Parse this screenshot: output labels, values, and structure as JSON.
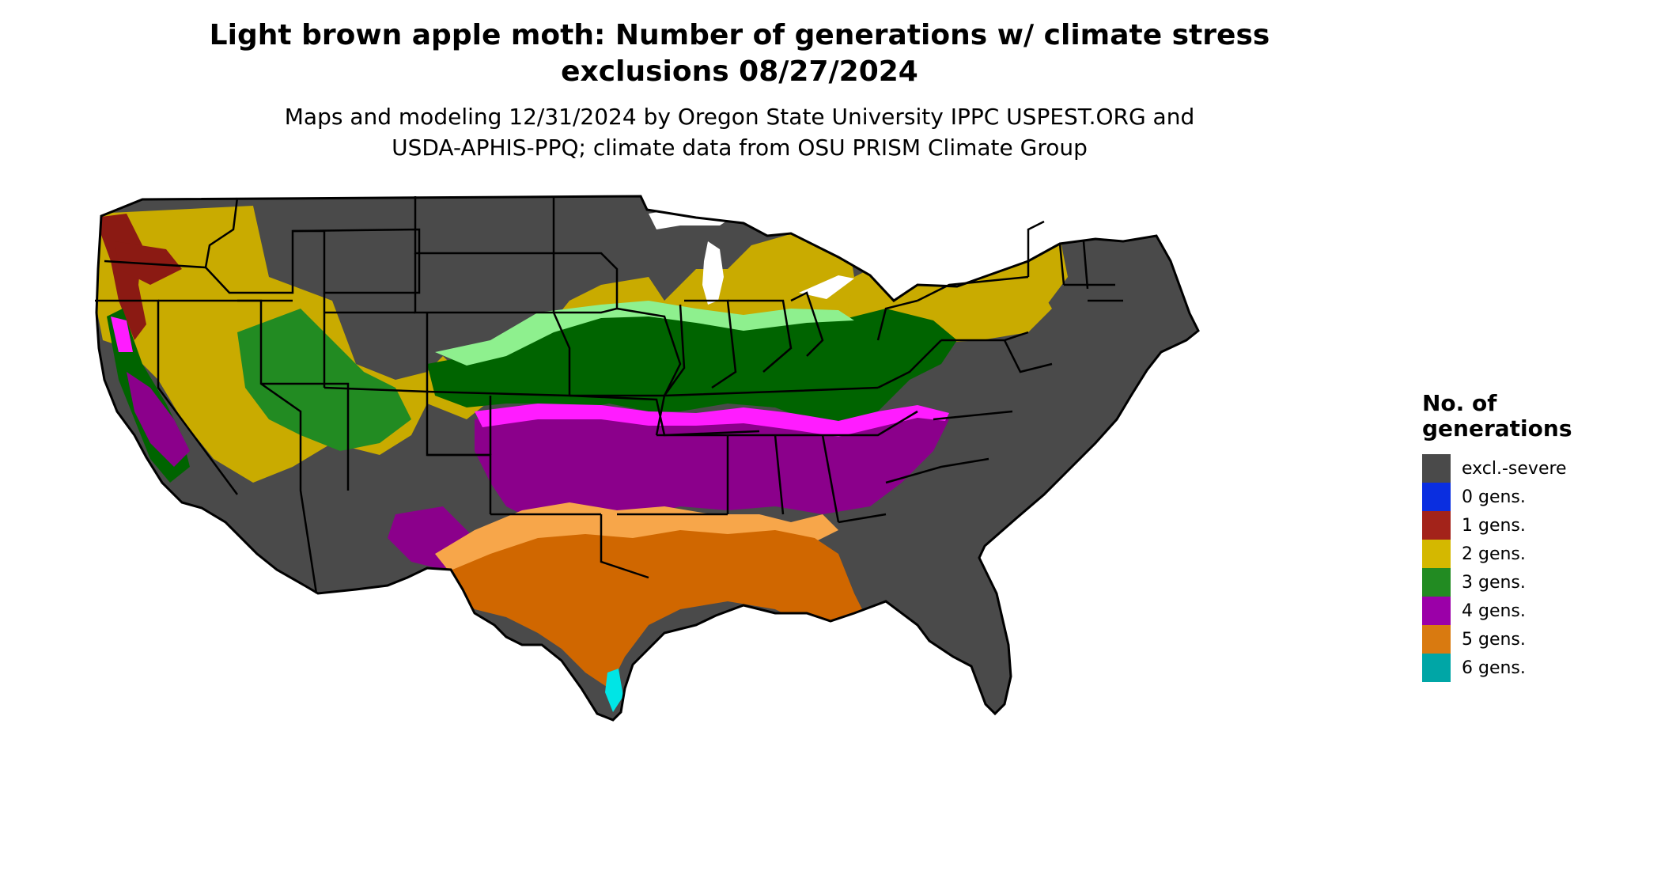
{
  "title": {
    "line1": "Light brown apple moth: Number of generations w/ climate stress",
    "line2": "exclusions 08/27/2024"
  },
  "subtitle": {
    "line1": "Maps and modeling 12/31/2024 by Oregon State University IPPC USPEST.ORG and",
    "line2": "USDA-APHIS-PPQ; climate data from OSU PRISM Climate Group"
  },
  "legend": {
    "title_line1": "No. of",
    "title_line2": "generations",
    "items": [
      {
        "label": "excl.-severe",
        "color": "#4a4a4a"
      },
      {
        "label": "0 gens.",
        "color": "#0a2ee0"
      },
      {
        "label": "1 gens.",
        "color": "#a3231a"
      },
      {
        "label": "2 gens.",
        "color": "#d4b800"
      },
      {
        "label": "3 gens.",
        "color": "#228b22"
      },
      {
        "label": "4 gens.",
        "color": "#9b00a8"
      },
      {
        "label": "5 gens.",
        "color": "#d97a10"
      },
      {
        "label": "6 gens.",
        "color": "#00a6a6"
      }
    ]
  },
  "map_colors": {
    "excluded": "#4a4a4a",
    "one_gen": "#8b1a13",
    "two_gen": "#c9ab00",
    "three_gen": "#006400",
    "three_gen_light": "#8ef08e",
    "four_gen": "#8b008b",
    "four_gen_light": "#ff1cff",
    "five_gen": "#d06700",
    "five_gen_light": "#f7a64a",
    "six_gen": "#00e5e5"
  }
}
